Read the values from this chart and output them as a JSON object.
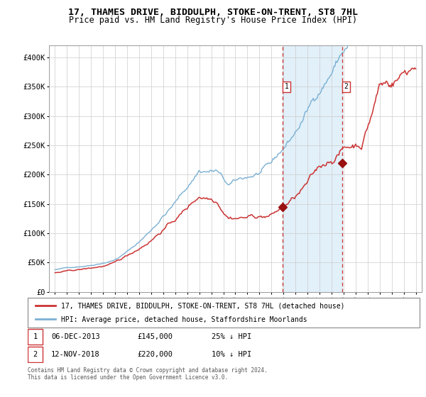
{
  "title": "17, THAMES DRIVE, BIDDULPH, STOKE-ON-TRENT, ST8 7HL",
  "subtitle": "Price paid vs. HM Land Registry's House Price Index (HPI)",
  "xlim": [
    1994.5,
    2025.5
  ],
  "ylim": [
    0,
    420000
  ],
  "yticks": [
    0,
    50000,
    100000,
    150000,
    200000,
    250000,
    300000,
    350000,
    400000
  ],
  "ytick_labels": [
    "£0",
    "£50K",
    "£100K",
    "£150K",
    "£200K",
    "£250K",
    "£300K",
    "£350K",
    "£400K"
  ],
  "xticks": [
    1995,
    1996,
    1997,
    1998,
    1999,
    2000,
    2001,
    2002,
    2003,
    2004,
    2005,
    2006,
    2007,
    2008,
    2009,
    2010,
    2011,
    2012,
    2013,
    2014,
    2015,
    2016,
    2017,
    2018,
    2019,
    2020,
    2021,
    2022,
    2023,
    2024,
    2025
  ],
  "hpi_color": "#7ab0d4",
  "price_color": "#cc3333",
  "marker_color": "#991111",
  "shade_color": "#dceef9",
  "vline_color": "#cc3333",
  "purchase1_x": 2013.92,
  "purchase1_y": 145000,
  "purchase2_x": 2018.87,
  "purchase2_y": 220000,
  "legend_label1": "17, THAMES DRIVE, BIDDULPH, STOKE-ON-TRENT, ST8 7HL (detached house)",
  "legend_label2": "HPI: Average price, detached house, Staffordshire Moorlands",
  "note1_date": "06-DEC-2013",
  "note1_price": "£145,000",
  "note1_hpi": "25% ↓ HPI",
  "note2_date": "12-NOV-2018",
  "note2_price": "£220,000",
  "note2_hpi": "10% ↓ HPI",
  "footer": "Contains HM Land Registry data © Crown copyright and database right 2024.\nThis data is licensed under the Open Government Licence v3.0.",
  "title_fontsize": 9.5,
  "subtitle_fontsize": 8.5,
  "tick_fontsize": 7.5,
  "legend_fontsize": 7.0,
  "note_fontsize": 7.5,
  "footer_fontsize": 5.5
}
